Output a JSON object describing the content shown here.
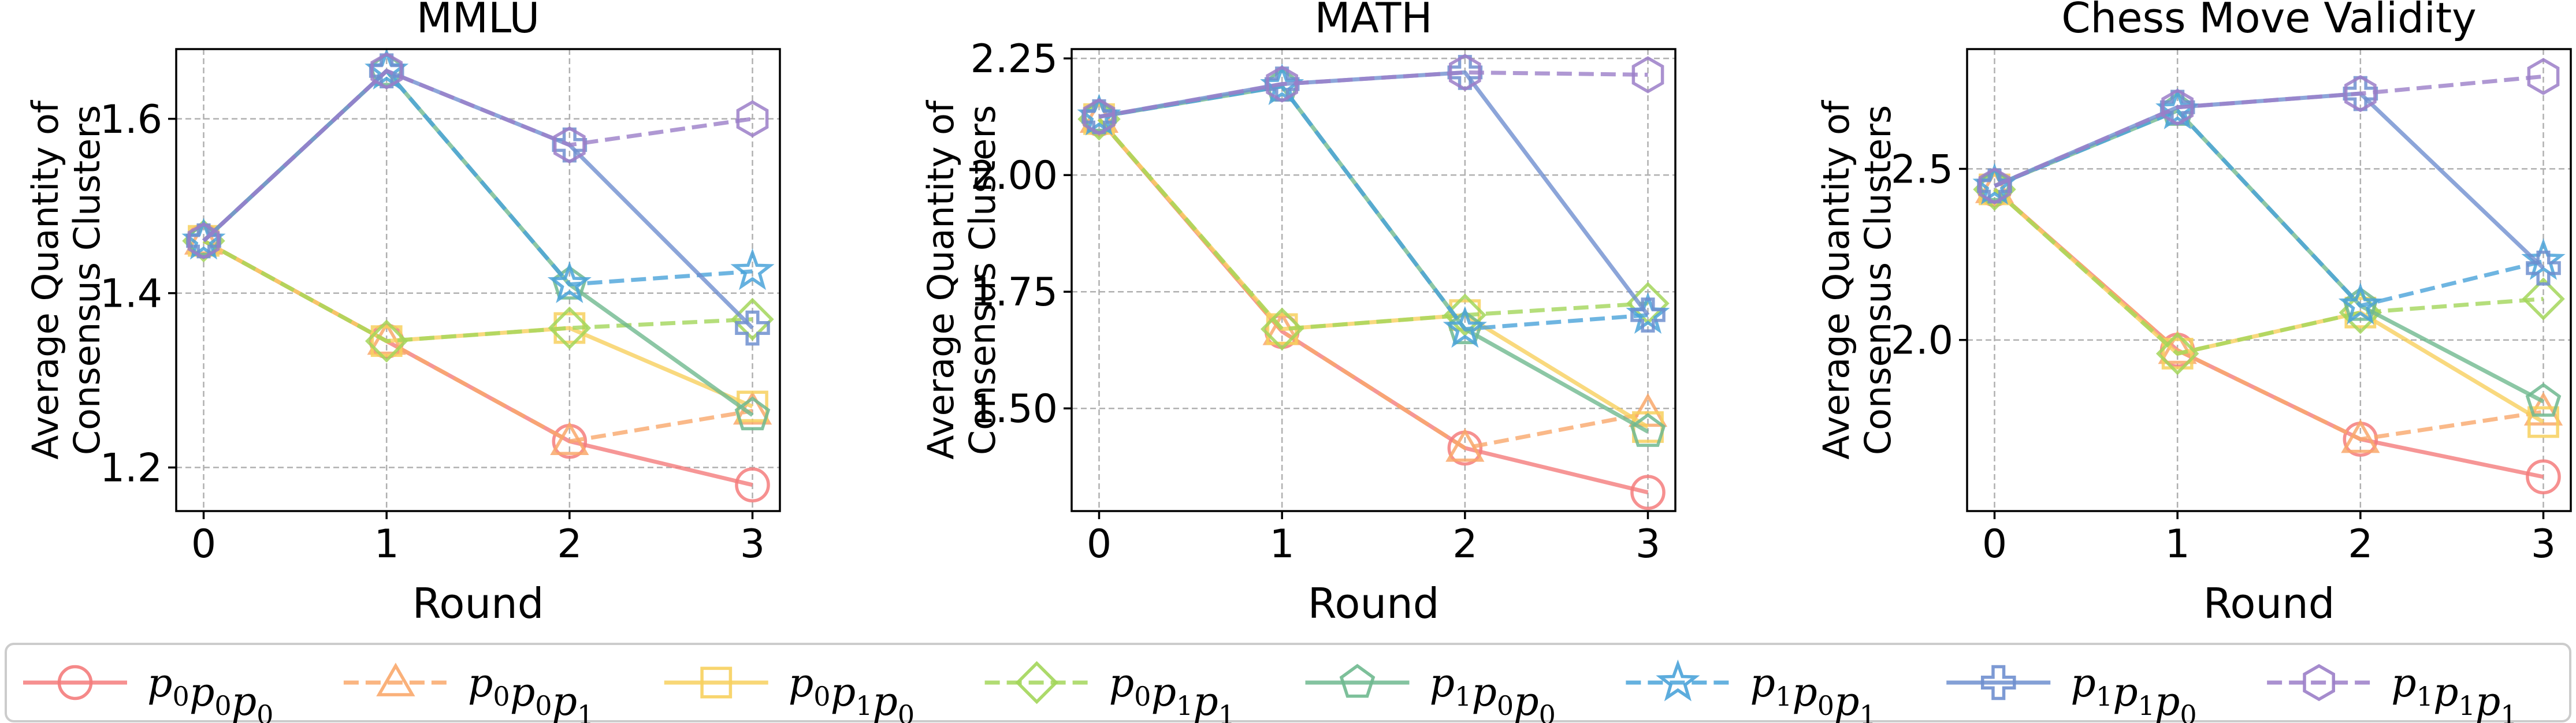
{
  "colors": {
    "p0p0p0": "#f47c7c",
    "p0p0p1": "#f9a86b",
    "p0p1p0": "#f7d05e",
    "p0p1p1": "#a3d65a",
    "p1p0p0": "#6fb98f",
    "p1p0p1": "#4aa3d9",
    "p1p1p0": "#6f8fcf",
    "p1p1p1": "#9b7ec8"
  },
  "legend": [
    {
      "key": "p0p0p0",
      "base": [
        "p",
        "p",
        "p"
      ],
      "subs": [
        "0",
        "0",
        "0"
      ],
      "marker": "circle",
      "dashed": false
    },
    {
      "key": "p0p0p1",
      "base": [
        "p",
        "p",
        "p"
      ],
      "subs": [
        "0",
        "0",
        "1"
      ],
      "marker": "triangle",
      "dashed": true
    },
    {
      "key": "p0p1p0",
      "base": [
        "p",
        "p",
        "p"
      ],
      "subs": [
        "0",
        "1",
        "0"
      ],
      "marker": "square",
      "dashed": false
    },
    {
      "key": "p0p1p1",
      "base": [
        "p",
        "p",
        "p"
      ],
      "subs": [
        "0",
        "1",
        "1"
      ],
      "marker": "diamond",
      "dashed": true
    },
    {
      "key": "p1p0p0",
      "base": [
        "p",
        "p",
        "p"
      ],
      "subs": [
        "1",
        "0",
        "0"
      ],
      "marker": "pentagon",
      "dashed": false
    },
    {
      "key": "p1p0p1",
      "base": [
        "p",
        "p",
        "p"
      ],
      "subs": [
        "1",
        "0",
        "1"
      ],
      "marker": "star",
      "dashed": true
    },
    {
      "key": "p1p1p0",
      "base": [
        "p",
        "p",
        "p"
      ],
      "subs": [
        "1",
        "1",
        "0"
      ],
      "marker": "plus",
      "dashed": false
    },
    {
      "key": "p1p1p1",
      "base": [
        "p",
        "p",
        "p"
      ],
      "subs": [
        "1",
        "1",
        "1"
      ],
      "marker": "hexagon",
      "dashed": true
    }
  ],
  "chart_data": [
    {
      "type": "line",
      "title": "MMLU",
      "xlabel": "Round",
      "ylabel": [
        "Average Quantity of",
        "Consensus Clusters"
      ],
      "x": [
        0,
        1,
        2,
        3
      ],
      "xlim": [
        -0.15,
        3.15
      ],
      "ylim": [
        1.15,
        1.68
      ],
      "yticks": [
        "1.2",
        "1.4",
        "1.6"
      ],
      "ytick_values": [
        1.2,
        1.4,
        1.6
      ],
      "grid": true,
      "series": [
        {
          "key": "p0p0p0",
          "values": [
            1.46,
            1.345,
            1.23,
            1.18
          ]
        },
        {
          "key": "p0p0p1",
          "values": [
            1.46,
            1.345,
            1.23,
            1.265
          ]
        },
        {
          "key": "p0p1p0",
          "values": [
            1.46,
            1.345,
            1.36,
            1.27
          ]
        },
        {
          "key": "p0p1p1",
          "values": [
            1.46,
            1.345,
            1.36,
            1.37
          ]
        },
        {
          "key": "p1p0p0",
          "values": [
            1.46,
            1.655,
            1.41,
            1.26
          ]
        },
        {
          "key": "p1p0p1",
          "values": [
            1.46,
            1.655,
            1.41,
            1.425
          ]
        },
        {
          "key": "p1p1p0",
          "values": [
            1.46,
            1.655,
            1.57,
            1.36
          ]
        },
        {
          "key": "p1p1p1",
          "values": [
            1.46,
            1.655,
            1.57,
            1.6
          ]
        }
      ]
    },
    {
      "type": "line",
      "title": "MATH",
      "xlabel": "Round",
      "ylabel": [
        "Average Quantity of",
        "Consensus Clusters"
      ],
      "x": [
        0,
        1,
        2,
        3
      ],
      "xlim": [
        -0.15,
        3.15
      ],
      "ylim": [
        1.28,
        2.27
      ],
      "yticks": [
        "1.50",
        "1.75",
        "2.00",
        "2.25"
      ],
      "ytick_values": [
        1.5,
        1.75,
        2.0,
        2.25
      ],
      "grid": true,
      "series": [
        {
          "key": "p0p0p0",
          "values": [
            2.12,
            1.665,
            1.415,
            1.32
          ]
        },
        {
          "key": "p0p0p1",
          "values": [
            2.12,
            1.665,
            1.415,
            1.49
          ]
        },
        {
          "key": "p0p1p0",
          "values": [
            2.12,
            1.67,
            1.7,
            1.46
          ]
        },
        {
          "key": "p0p1p1",
          "values": [
            2.12,
            1.67,
            1.7,
            1.725
          ]
        },
        {
          "key": "p1p0p0",
          "values": [
            2.125,
            2.19,
            1.67,
            1.45
          ]
        },
        {
          "key": "p1p0p1",
          "values": [
            2.125,
            2.19,
            1.67,
            1.7
          ]
        },
        {
          "key": "p1p1p0",
          "values": [
            2.125,
            2.195,
            2.22,
            1.7
          ]
        },
        {
          "key": "p1p1p1",
          "values": [
            2.125,
            2.195,
            2.22,
            2.215
          ]
        }
      ]
    },
    {
      "type": "line",
      "title": "Chess Move Validity",
      "xlabel": "Round",
      "ylabel": [
        "Average Quantity of",
        "Consensus Clusters"
      ],
      "x": [
        0,
        1,
        2,
        3
      ],
      "xlim": [
        -0.15,
        3.15
      ],
      "ylim": [
        1.5,
        2.85
      ],
      "yticks": [
        "2.0",
        "2.5"
      ],
      "ytick_values": [
        2.0,
        2.5
      ],
      "grid": true,
      "series": [
        {
          "key": "p0p0p0",
          "values": [
            2.44,
            1.97,
            1.71,
            1.6
          ]
        },
        {
          "key": "p0p0p1",
          "values": [
            2.44,
            1.97,
            1.71,
            1.79
          ]
        },
        {
          "key": "p0p1p0",
          "values": [
            2.44,
            1.96,
            2.08,
            1.76
          ]
        },
        {
          "key": "p0p1p1",
          "values": [
            2.44,
            1.96,
            2.08,
            2.12
          ]
        },
        {
          "key": "p1p0p0",
          "values": [
            2.45,
            2.67,
            2.1,
            1.82
          ]
        },
        {
          "key": "p1p0p1",
          "values": [
            2.45,
            2.67,
            2.1,
            2.23
          ]
        },
        {
          "key": "p1p1p0",
          "values": [
            2.45,
            2.68,
            2.72,
            2.21
          ]
        },
        {
          "key": "p1p1p1",
          "values": [
            2.45,
            2.68,
            2.72,
            2.77
          ]
        }
      ]
    }
  ]
}
